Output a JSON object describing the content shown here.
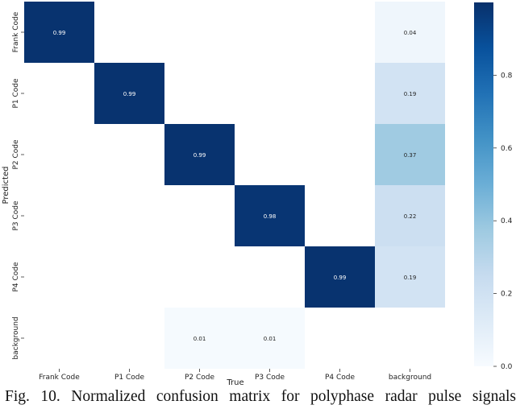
{
  "chart_data": {
    "type": "heatmap",
    "xlabel": "True",
    "ylabel": "Predicted",
    "x_categories": [
      "Frank Code",
      "P1 Code",
      "P2 Code",
      "P3 Code",
      "P4 Code",
      "background"
    ],
    "y_categories": [
      "Frank Code",
      "P1 Code",
      "P2 Code",
      "P3 Code",
      "P4 Code",
      "background"
    ],
    "cells": [
      {
        "row": 0,
        "col": 0,
        "value": 0.99,
        "label": "0.99"
      },
      {
        "row": 0,
        "col": 5,
        "value": 0.04,
        "label": "0.04"
      },
      {
        "row": 1,
        "col": 1,
        "value": 0.99,
        "label": "0.99"
      },
      {
        "row": 1,
        "col": 5,
        "value": 0.19,
        "label": "0.19"
      },
      {
        "row": 2,
        "col": 2,
        "value": 0.99,
        "label": "0.99"
      },
      {
        "row": 2,
        "col": 5,
        "value": 0.37,
        "label": "0.37"
      },
      {
        "row": 3,
        "col": 3,
        "value": 0.98,
        "label": "0.98"
      },
      {
        "row": 3,
        "col": 5,
        "value": 0.22,
        "label": "0.22"
      },
      {
        "row": 4,
        "col": 4,
        "value": 0.99,
        "label": "0.99"
      },
      {
        "row": 4,
        "col": 5,
        "value": 0.19,
        "label": "0.19"
      },
      {
        "row": 5,
        "col": 2,
        "value": 0.01,
        "label": "0.01"
      },
      {
        "row": 5,
        "col": 3,
        "value": 0.01,
        "label": "0.01"
      }
    ],
    "colorbar": {
      "range": [
        0,
        1
      ],
      "ticks": [
        "0.0",
        "0.2",
        "0.4",
        "0.6",
        "0.8"
      ],
      "tick_values": [
        0,
        0.2,
        0.4,
        0.6,
        0.8
      ],
      "colormap": "Blues",
      "color_low": "#f7fbff",
      "color_high": "#08306b"
    }
  },
  "caption": "Fig. 10. Normalized confusion matrix for polyphase radar pulse signals"
}
